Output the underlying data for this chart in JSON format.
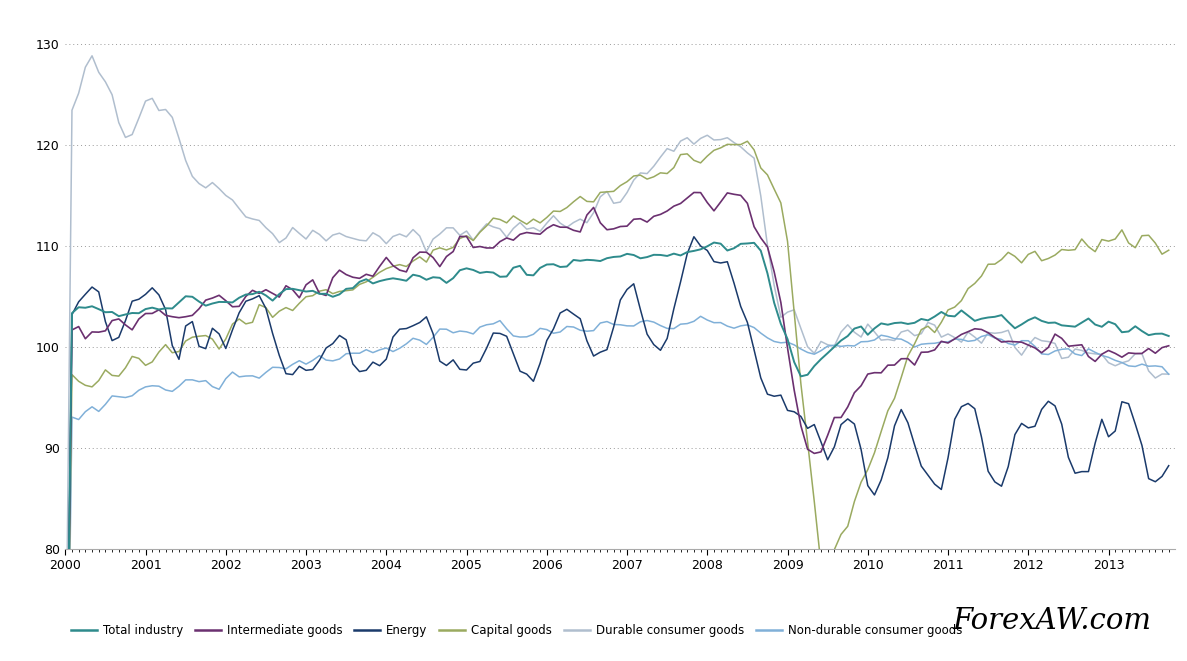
{
  "ylim": [
    80,
    133
  ],
  "xlim": [
    2000.0,
    2013.83
  ],
  "yticks": [
    80,
    90,
    100,
    110,
    120,
    130
  ],
  "xticks": [
    2000,
    2001,
    2002,
    2003,
    2004,
    2005,
    2006,
    2007,
    2008,
    2009,
    2010,
    2011,
    2012,
    2013
  ],
  "watermark": "ForexAW.com",
  "series_colors": {
    "Total industry": "#2e8b8c",
    "Intermediate goods": "#6b3070",
    "Energy": "#1a3a6b",
    "Capital goods": "#9aaa60",
    "Durable consumer goods": "#b0bece",
    "Non-durable consumer goods": "#80b0d8"
  },
  "legend_order": [
    "Total industry",
    "Intermediate goods",
    "Energy",
    "Capital goods",
    "Durable consumer goods",
    "Non-durable consumer goods"
  ]
}
